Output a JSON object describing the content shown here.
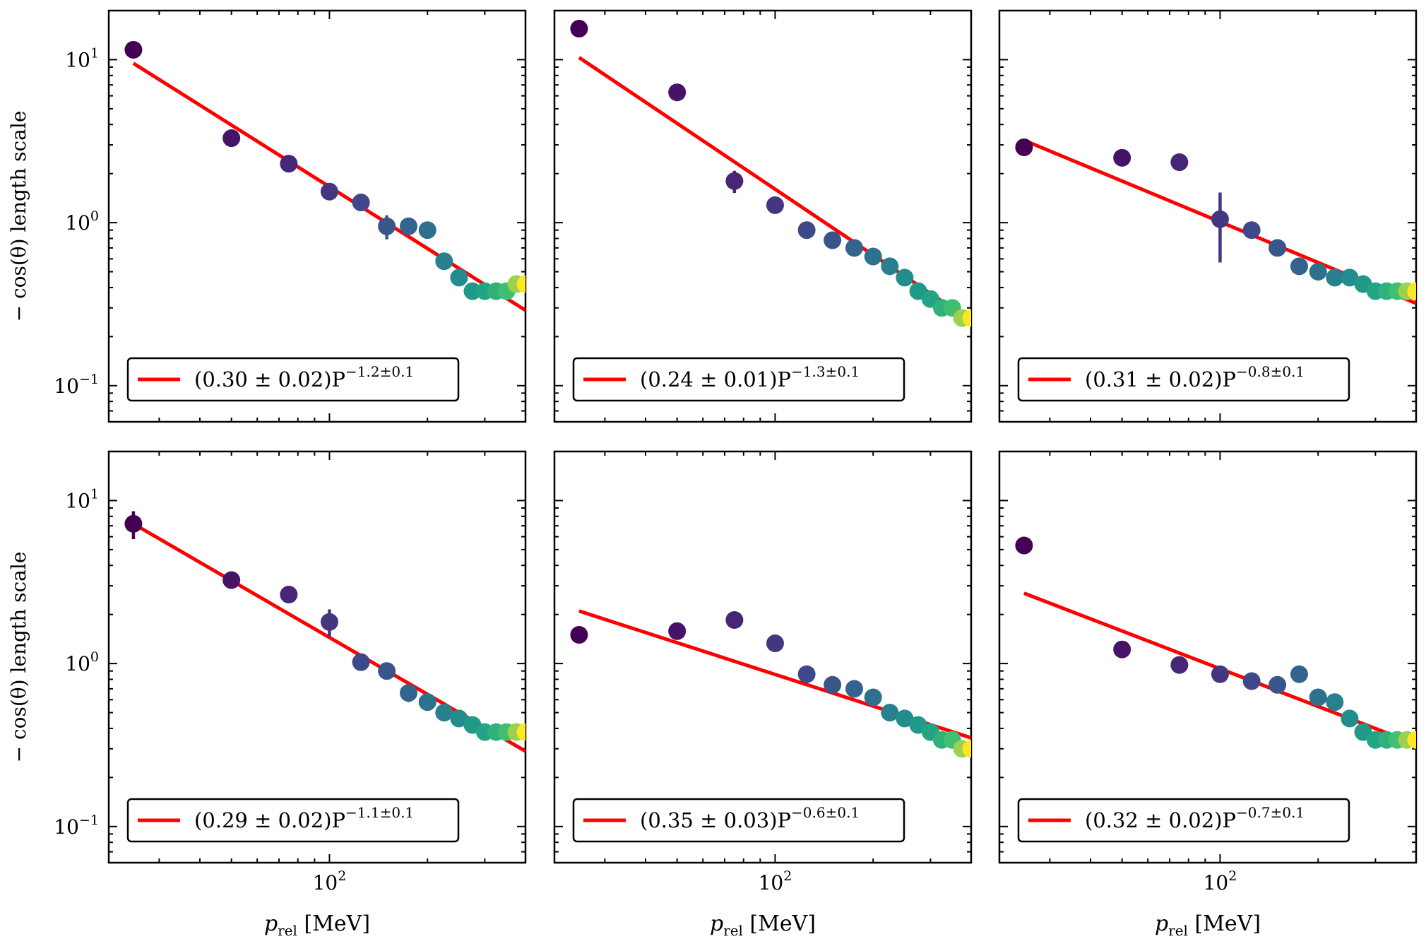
{
  "figure": {
    "ylabel": "− cos(θ) length scale",
    "xlabel_main": "p",
    "xlabel_sub": "rel",
    "xlabel_unit": " [MeV]",
    "ytick_labels": [
      {
        "base": "10",
        "exp": "1"
      },
      {
        "base": "10",
        "exp": "0"
      },
      {
        "base": "10",
        "exp": "−1"
      }
    ],
    "xtick_label": {
      "base": "10",
      "exp": "2"
    },
    "fit_line_color": "#ff0000",
    "colormap": "viridis"
  },
  "chart_data": [
    {
      "type": "scatter",
      "panel": "top-left",
      "xscale": "log",
      "yscale": "log",
      "xlim": [
        21,
        400
      ],
      "ylim": [
        0.06,
        20
      ],
      "x": [
        25,
        50,
        75,
        100,
        125,
        150,
        175,
        200,
        225,
        250,
        275,
        300,
        325,
        350,
        375,
        400
      ],
      "y": [
        11.5,
        3.3,
        2.3,
        1.55,
        1.33,
        0.95,
        0.95,
        0.9,
        0.58,
        0.46,
        0.38,
        0.38,
        0.38,
        0.38,
        0.42,
        0.42
      ],
      "yerr": [
        1.1,
        0.35,
        0.0,
        0.0,
        0.0,
        0.16,
        0.0,
        0.0,
        0.0,
        0.0,
        0.0,
        0.0,
        0.0,
        0.0,
        0.0,
        0.0
      ],
      "fit": {
        "x": [
          25,
          400
        ],
        "y": [
          9.5,
          0.29
        ]
      },
      "legend": {
        "coef": "(0.30 ± 0.02)P",
        "exp": "−1.2±0.1",
        "position": "lower-left"
      }
    },
    {
      "type": "scatter",
      "panel": "top-center",
      "xscale": "log",
      "yscale": "log",
      "xlim": [
        21,
        400
      ],
      "ylim": [
        0.06,
        20
      ],
      "x": [
        25,
        50,
        75,
        100,
        125,
        150,
        175,
        200,
        225,
        250,
        275,
        300,
        325,
        350,
        375,
        400
      ],
      "y": [
        15.5,
        6.3,
        1.8,
        1.28,
        0.9,
        0.78,
        0.7,
        0.62,
        0.54,
        0.46,
        0.38,
        0.34,
        0.3,
        0.3,
        0.26,
        0.26
      ],
      "yerr": [
        0.0,
        0.0,
        0.28,
        0.0,
        0.0,
        0.0,
        0.0,
        0.0,
        0.0,
        0.0,
        0.0,
        0.0,
        0.0,
        0.0,
        0.0,
        0.0
      ],
      "fit": {
        "x": [
          25,
          400
        ],
        "y": [
          10.3,
          0.25
        ]
      },
      "legend": {
        "coef": "(0.24 ± 0.01)P",
        "exp": "−1.3±0.1",
        "position": "lower-left"
      }
    },
    {
      "type": "scatter",
      "panel": "top-right",
      "xscale": "log",
      "yscale": "log",
      "xlim": [
        21,
        400
      ],
      "ylim": [
        0.06,
        20
      ],
      "x": [
        25,
        50,
        75,
        100,
        125,
        150,
        175,
        200,
        225,
        250,
        275,
        300,
        325,
        350,
        375,
        400
      ],
      "y": [
        2.9,
        2.5,
        2.35,
        1.05,
        0.9,
        0.7,
        0.54,
        0.5,
        0.46,
        0.46,
        0.42,
        0.38,
        0.38,
        0.38,
        0.38,
        0.38
      ],
      "yerr": [
        0.0,
        0.0,
        0.0,
        0.48,
        0.0,
        0.0,
        0.0,
        0.0,
        0.0,
        0.0,
        0.0,
        0.0,
        0.0,
        0.0,
        0.0,
        0.0
      ],
      "fit": {
        "x": [
          25,
          400
        ],
        "y": [
          3.2,
          0.32
        ]
      },
      "legend": {
        "coef": "(0.31 ± 0.02)P",
        "exp": "−0.8±0.1",
        "position": "lower-left"
      }
    },
    {
      "type": "scatter",
      "panel": "bottom-left",
      "xscale": "log",
      "yscale": "log",
      "xlim": [
        21,
        400
      ],
      "ylim": [
        0.06,
        20
      ],
      "x": [
        25,
        50,
        75,
        100,
        125,
        150,
        175,
        200,
        225,
        250,
        275,
        300,
        325,
        350,
        375,
        400
      ],
      "y": [
        7.2,
        3.25,
        2.65,
        1.8,
        1.02,
        0.9,
        0.66,
        0.58,
        0.5,
        0.46,
        0.42,
        0.38,
        0.38,
        0.38,
        0.38,
        0.38
      ],
      "yerr": [
        1.4,
        0.0,
        0.0,
        0.35,
        0.0,
        0.0,
        0.08,
        0.0,
        0.0,
        0.0,
        0.0,
        0.0,
        0.0,
        0.0,
        0.0,
        0.0
      ],
      "fit": {
        "x": [
          25,
          400
        ],
        "y": [
          7.2,
          0.29
        ]
      },
      "legend": {
        "coef": "(0.29 ± 0.02)P",
        "exp": "−1.1±0.1",
        "position": "lower-left"
      }
    },
    {
      "type": "scatter",
      "panel": "bottom-center",
      "xscale": "log",
      "yscale": "log",
      "xlim": [
        21,
        400
      ],
      "ylim": [
        0.06,
        20
      ],
      "x": [
        25,
        50,
        75,
        100,
        125,
        150,
        175,
        200,
        225,
        250,
        275,
        300,
        325,
        350,
        375,
        400
      ],
      "y": [
        1.5,
        1.58,
        1.85,
        1.33,
        0.86,
        0.74,
        0.7,
        0.62,
        0.5,
        0.46,
        0.42,
        0.38,
        0.34,
        0.34,
        0.3,
        0.3
      ],
      "yerr": [
        0.0,
        0.0,
        0.0,
        0.0,
        0.0,
        0.0,
        0.0,
        0.0,
        0.0,
        0.0,
        0.0,
        0.0,
        0.0,
        0.0,
        0.0,
        0.0
      ],
      "fit": {
        "x": [
          25,
          400
        ],
        "y": [
          2.1,
          0.35
        ]
      },
      "legend": {
        "coef": "(0.35 ± 0.03)P",
        "exp": "−0.6±0.1",
        "position": "lower-left"
      }
    },
    {
      "type": "scatter",
      "panel": "bottom-right",
      "xscale": "log",
      "yscale": "log",
      "xlim": [
        21,
        400
      ],
      "ylim": [
        0.06,
        20
      ],
      "x": [
        25,
        50,
        75,
        100,
        125,
        150,
        175,
        200,
        225,
        250,
        275,
        300,
        325,
        350,
        375,
        400
      ],
      "y": [
        5.3,
        1.22,
        0.98,
        0.86,
        0.78,
        0.74,
        0.86,
        0.62,
        0.58,
        0.46,
        0.38,
        0.34,
        0.34,
        0.34,
        0.34,
        0.34
      ],
      "yerr": [
        0.0,
        0.0,
        0.0,
        0.0,
        0.0,
        0.0,
        0.0,
        0.0,
        0.0,
        0.0,
        0.0,
        0.0,
        0.0,
        0.0,
        0.0,
        0.0
      ],
      "fit": {
        "x": [
          25,
          400
        ],
        "y": [
          2.7,
          0.32
        ]
      },
      "legend": {
        "coef": "(0.32 ± 0.02)P",
        "exp": "−0.7±0.1",
        "position": "lower-left"
      }
    }
  ]
}
